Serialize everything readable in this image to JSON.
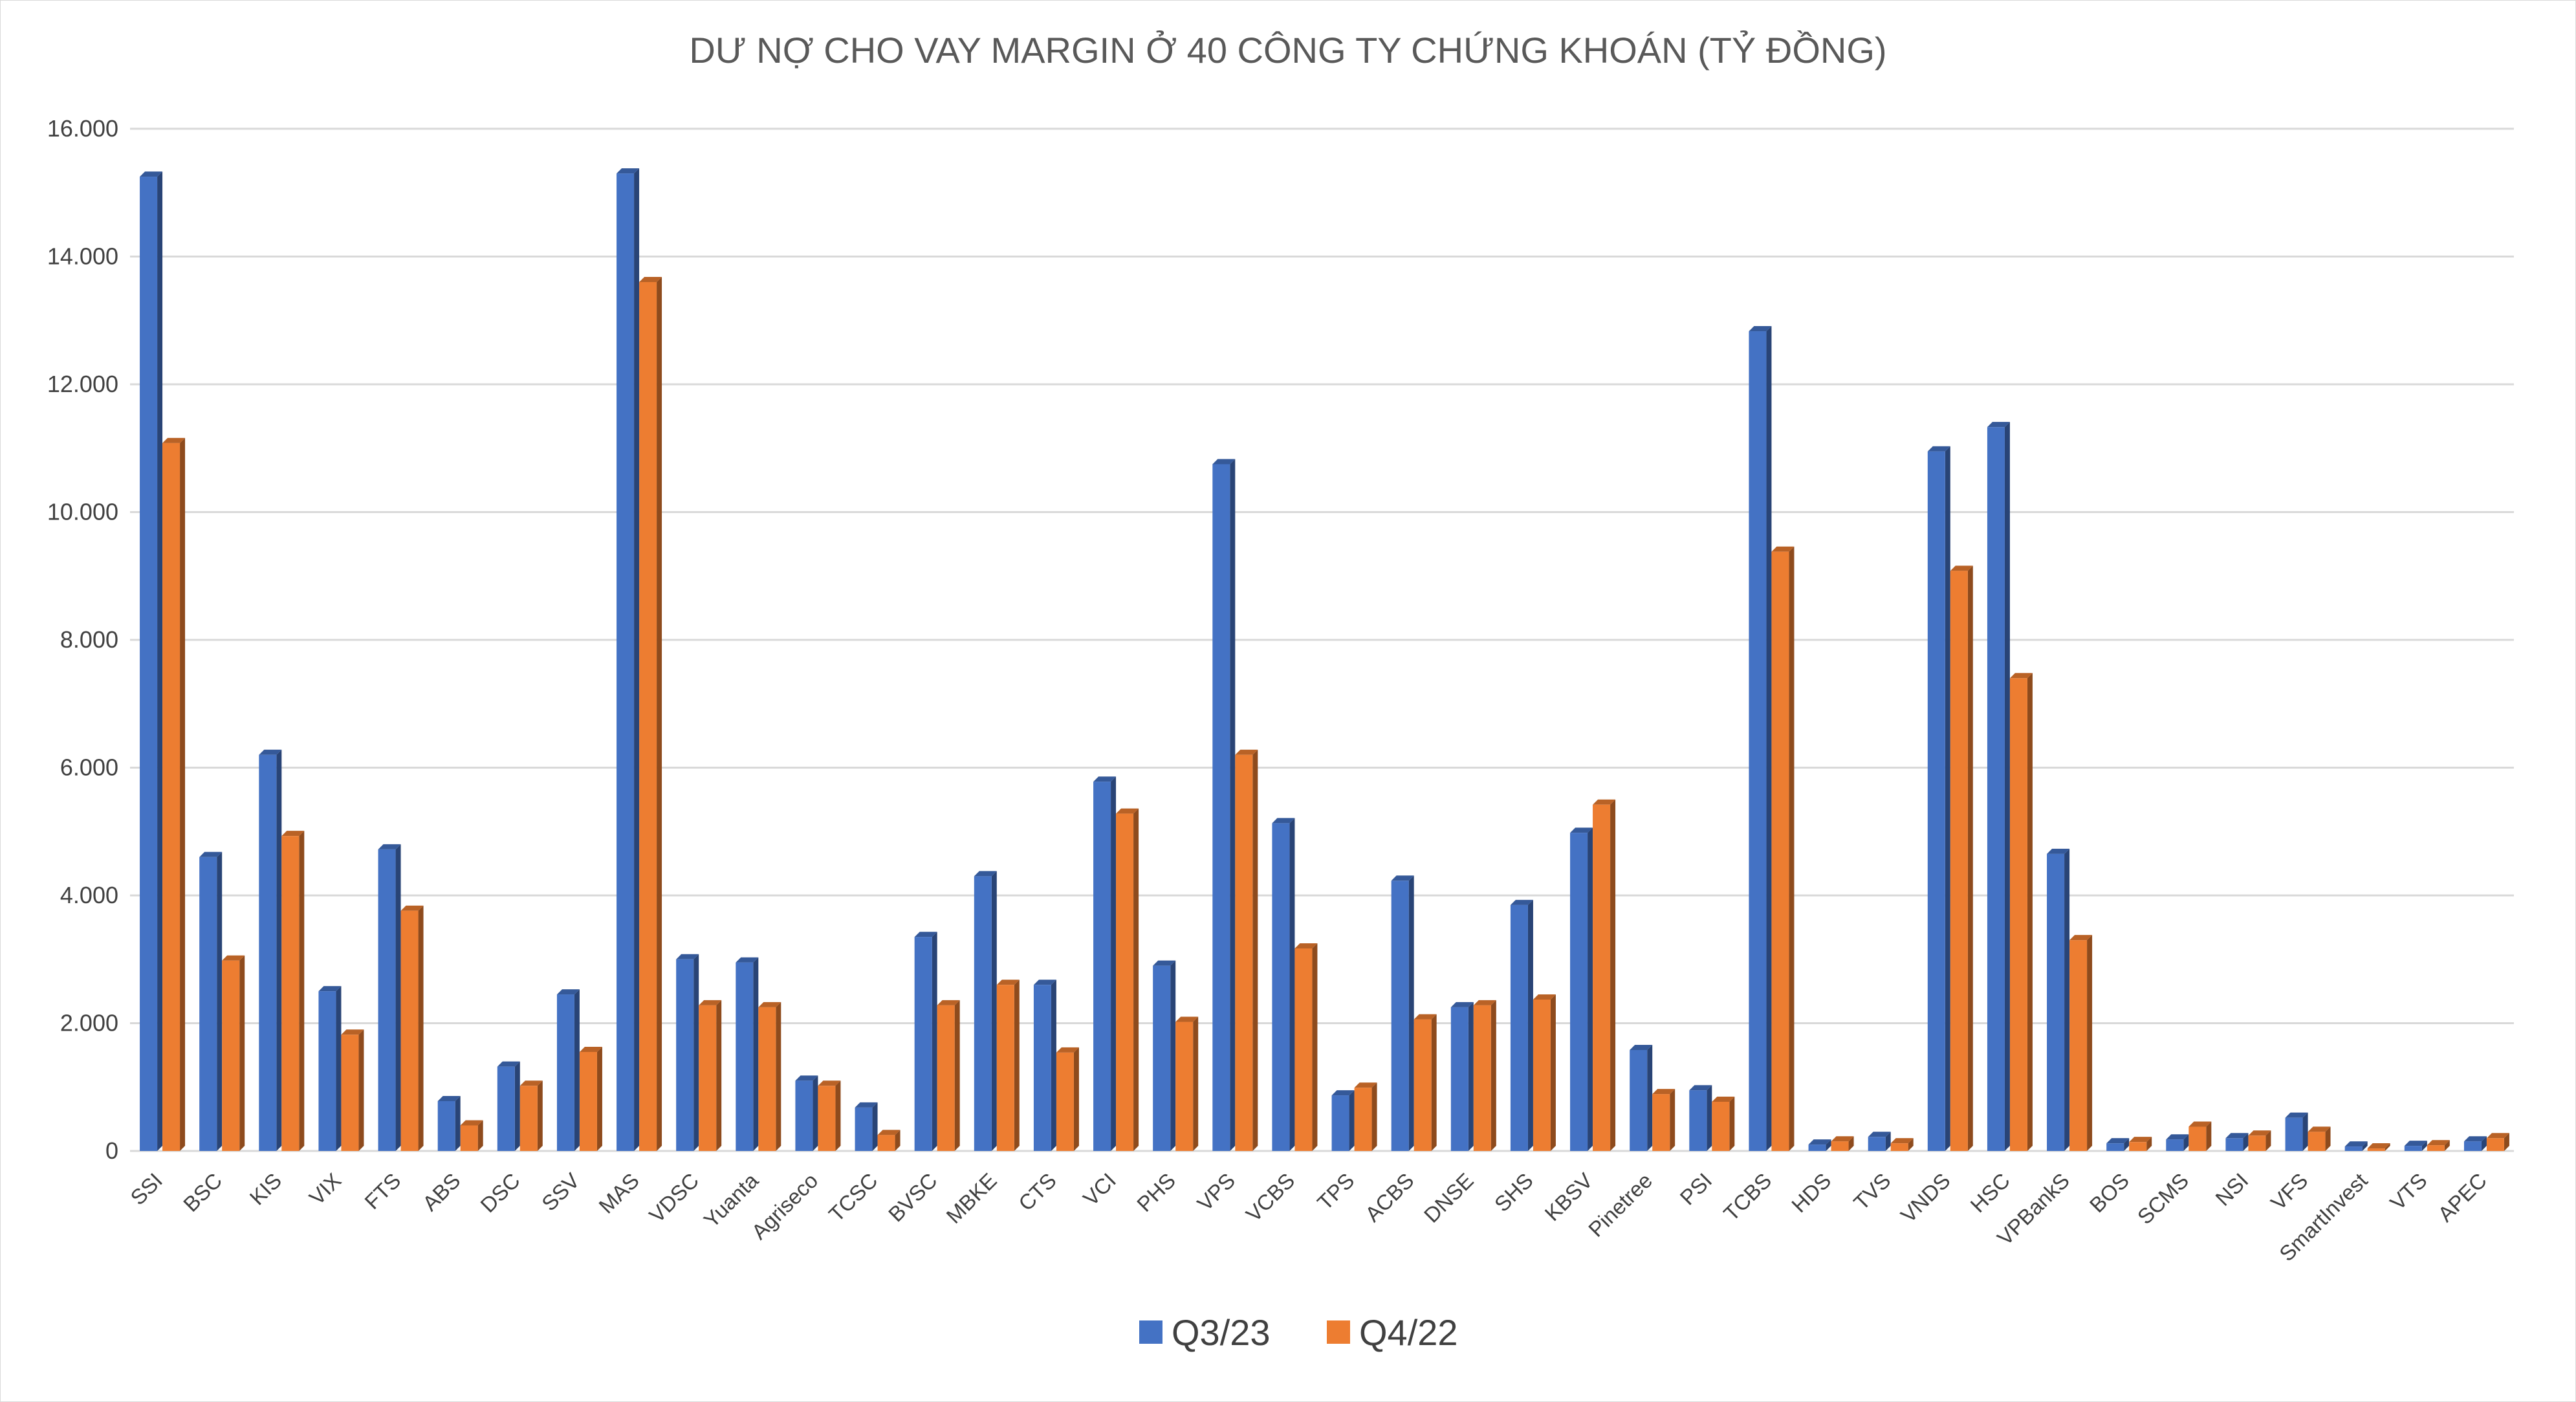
{
  "chart_data": {
    "type": "bar",
    "title": "DƯ NỢ CHO VAY MARGIN Ở 40 CÔNG TY CHỨNG KHOÁN (TỶ ĐỒNG)",
    "xlabel": "",
    "ylabel": "",
    "ylim": [
      0,
      16000
    ],
    "yticks": [
      "0",
      "2.000",
      "4.000",
      "6.000",
      "8.000",
      "10.000",
      "12.000",
      "14.000",
      "16.000"
    ],
    "grid": true,
    "legend_position": "bottom",
    "categories": [
      "SSI",
      "BSC",
      "KIS",
      "VIX",
      "FTS",
      "ABS",
      "DSC",
      "SSV",
      "MAS",
      "VDSC",
      "Yuanta",
      "Agriseco",
      "TCSC",
      "BVSC",
      "MBKE",
      "CTS",
      "VCI",
      "PHS",
      "VPS",
      "VCBS",
      "TPS",
      "ACBS",
      "DNSE",
      "SHS",
      "KBSV",
      "Pinetree",
      "PSI",
      "TCBS",
      "HDS",
      "TVS",
      "VNDS",
      "HSC",
      "VPBankS",
      "BOS",
      "SCMS",
      "NSI",
      "VFS",
      "SmartInvest",
      "VTS",
      "APEC"
    ],
    "series": [
      {
        "name": "Q3/23",
        "color": "#4472c4",
        "values": [
          15250,
          4600,
          6200,
          2500,
          4720,
          780,
          1320,
          2450,
          15300,
          3000,
          2950,
          1100,
          680,
          3350,
          4300,
          2600,
          5780,
          2900,
          10750,
          5130,
          870,
          4230,
          2250,
          3850,
          4980,
          1580,
          950,
          12830,
          100,
          220,
          10950,
          11330,
          4650,
          120,
          180,
          200,
          520,
          70,
          80,
          150
        ]
      },
      {
        "name": "Q4/22",
        "color": "#ed7d31",
        "values": [
          11080,
          2980,
          4930,
          1820,
          3760,
          400,
          1020,
          1550,
          13600,
          2280,
          2250,
          1020,
          250,
          2280,
          2600,
          1540,
          5280,
          2020,
          6200,
          3170,
          990,
          2060,
          2280,
          2370,
          5420,
          890,
          770,
          9380,
          150,
          120,
          9080,
          7400,
          3300,
          140,
          380,
          240,
          300,
          40,
          90,
          200
        ]
      }
    ]
  }
}
